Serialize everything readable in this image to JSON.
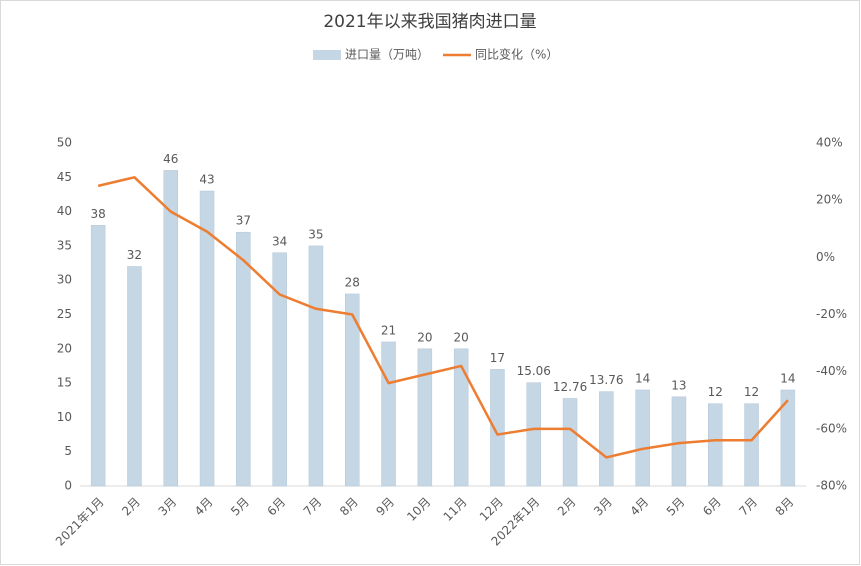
{
  "chart_data": {
    "type": "bar",
    "title": "2021年以来我国猪肉进口量",
    "categories": [
      "2021年1月",
      "2月",
      "3月",
      "4月",
      "5月",
      "6月",
      "7月",
      "8月",
      "9月",
      "10月",
      "11月",
      "12月",
      "2022年1月",
      "2月",
      "3月",
      "4月",
      "5月",
      "6月",
      "7月",
      "8月"
    ],
    "series": [
      {
        "name": "进口量（万吨）",
        "color": "#c5d6e4",
        "values": [
          38,
          32,
          46,
          43,
          37,
          34,
          35,
          28,
          21,
          20,
          20,
          17,
          15.06,
          12.76,
          13.76,
          14,
          13,
          12,
          12,
          14
        ]
      },
      {
        "name": "同比变化（%）",
        "color": "#ed7d31",
        "axis": "y2",
        "values": [
          25,
          28,
          16,
          9,
          -1,
          -13,
          -18,
          -20,
          -44,
          -41,
          -38,
          -62,
          -60,
          -60,
          -70,
          -67,
          -65,
          -64,
          -64,
          -50
        ]
      }
    ],
    "ylim": [
      0,
      50
    ],
    "yticks": [
      0,
      5,
      10,
      15,
      20,
      25,
      30,
      35,
      40,
      45,
      50
    ],
    "y2lim": [
      -80,
      40
    ],
    "y2ticks": [
      {
        "value": -80,
        "label": "-80%"
      },
      {
        "value": -60,
        "label": "-60%"
      },
      {
        "value": -40,
        "label": "-40%"
      },
      {
        "value": -20,
        "label": "-20%"
      },
      {
        "value": 0,
        "label": "0%"
      },
      {
        "value": 20,
        "label": "20%"
      },
      {
        "value": 40,
        "label": "40%"
      }
    ]
  }
}
